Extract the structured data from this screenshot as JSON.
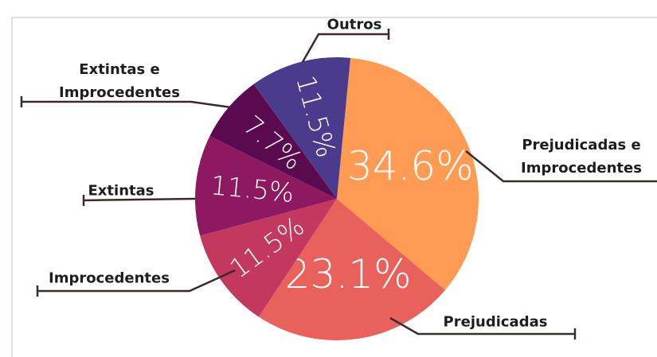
{
  "chart_data": {
    "type": "pie",
    "categories": [
      "Prejudicadas e Improcedentes",
      "Prejudicadas",
      "Improcedentes",
      "Extintas",
      "Extintas e Improcedentes",
      "Outros"
    ],
    "values": [
      34.6,
      23.1,
      11.5,
      11.5,
      7.7,
      11.5
    ],
    "value_labels": [
      "34.6%",
      "23.1%",
      "11.5%",
      "11.5%",
      "7.7%",
      "11.5%"
    ],
    "colors": [
      "#ff9b52",
      "#e8615a",
      "#c2385f",
      "#8d1a60",
      "#5a0b50",
      "#4b3b8c"
    ]
  }
}
